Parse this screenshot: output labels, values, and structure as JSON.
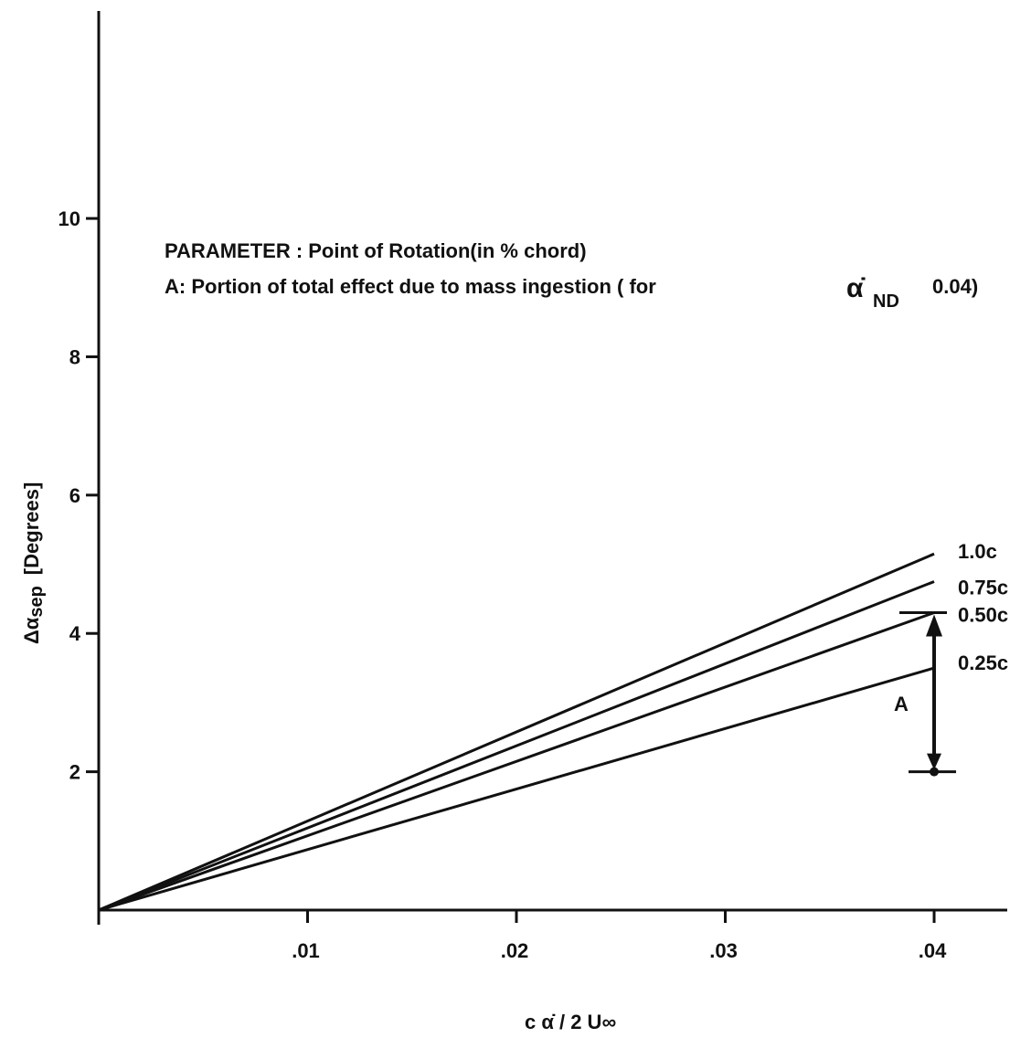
{
  "chart_data": {
    "type": "line",
    "title": "",
    "xlabel": "c α̇ / 2 U∞",
    "ylabel": "Δα",
    "ylabel_sub": "sep",
    "ylabel_units": "[Degrees]",
    "xlim": [
      0,
      0.0435
    ],
    "ylim": [
      0,
      13
    ],
    "x_ticks": [
      {
        "value": 0.01,
        "label": ".01"
      },
      {
        "value": 0.02,
        "label": ".02"
      },
      {
        "value": 0.03,
        "label": ".03"
      },
      {
        "value": 0.04,
        "label": ".04"
      }
    ],
    "y_ticks": [
      {
        "value": 2,
        "label": "2"
      },
      {
        "value": 4,
        "label": "4"
      },
      {
        "value": 6,
        "label": "6"
      },
      {
        "value": 8,
        "label": "8"
      },
      {
        "value": 10,
        "label": "10"
      }
    ],
    "series": [
      {
        "name": "1.0c",
        "x": [
          0,
          0.04
        ],
        "y": [
          0,
          5.15
        ]
      },
      {
        "name": "0.75c",
        "x": [
          0,
          0.04
        ],
        "y": [
          0,
          4.75
        ]
      },
      {
        "name": "0.50c",
        "x": [
          0,
          0.04
        ],
        "y": [
          0,
          4.3
        ]
      },
      {
        "name": "0.25c",
        "x": [
          0,
          0.04
        ],
        "y": [
          0,
          3.5
        ]
      }
    ],
    "annotations": {
      "parameter_line": "PARAMETER : Point of Rotation(in % chord)",
      "a_line_prefix": "A: Portion of total effect due to mass ingestion ( for",
      "a_line_symbol": "α̇",
      "a_line_sub": "ND",
      "a_line_value": "0.04)",
      "bracket_label": "A",
      "bracket": {
        "x": 0.04,
        "y_low": 2.0,
        "y_high": 4.3
      }
    }
  }
}
